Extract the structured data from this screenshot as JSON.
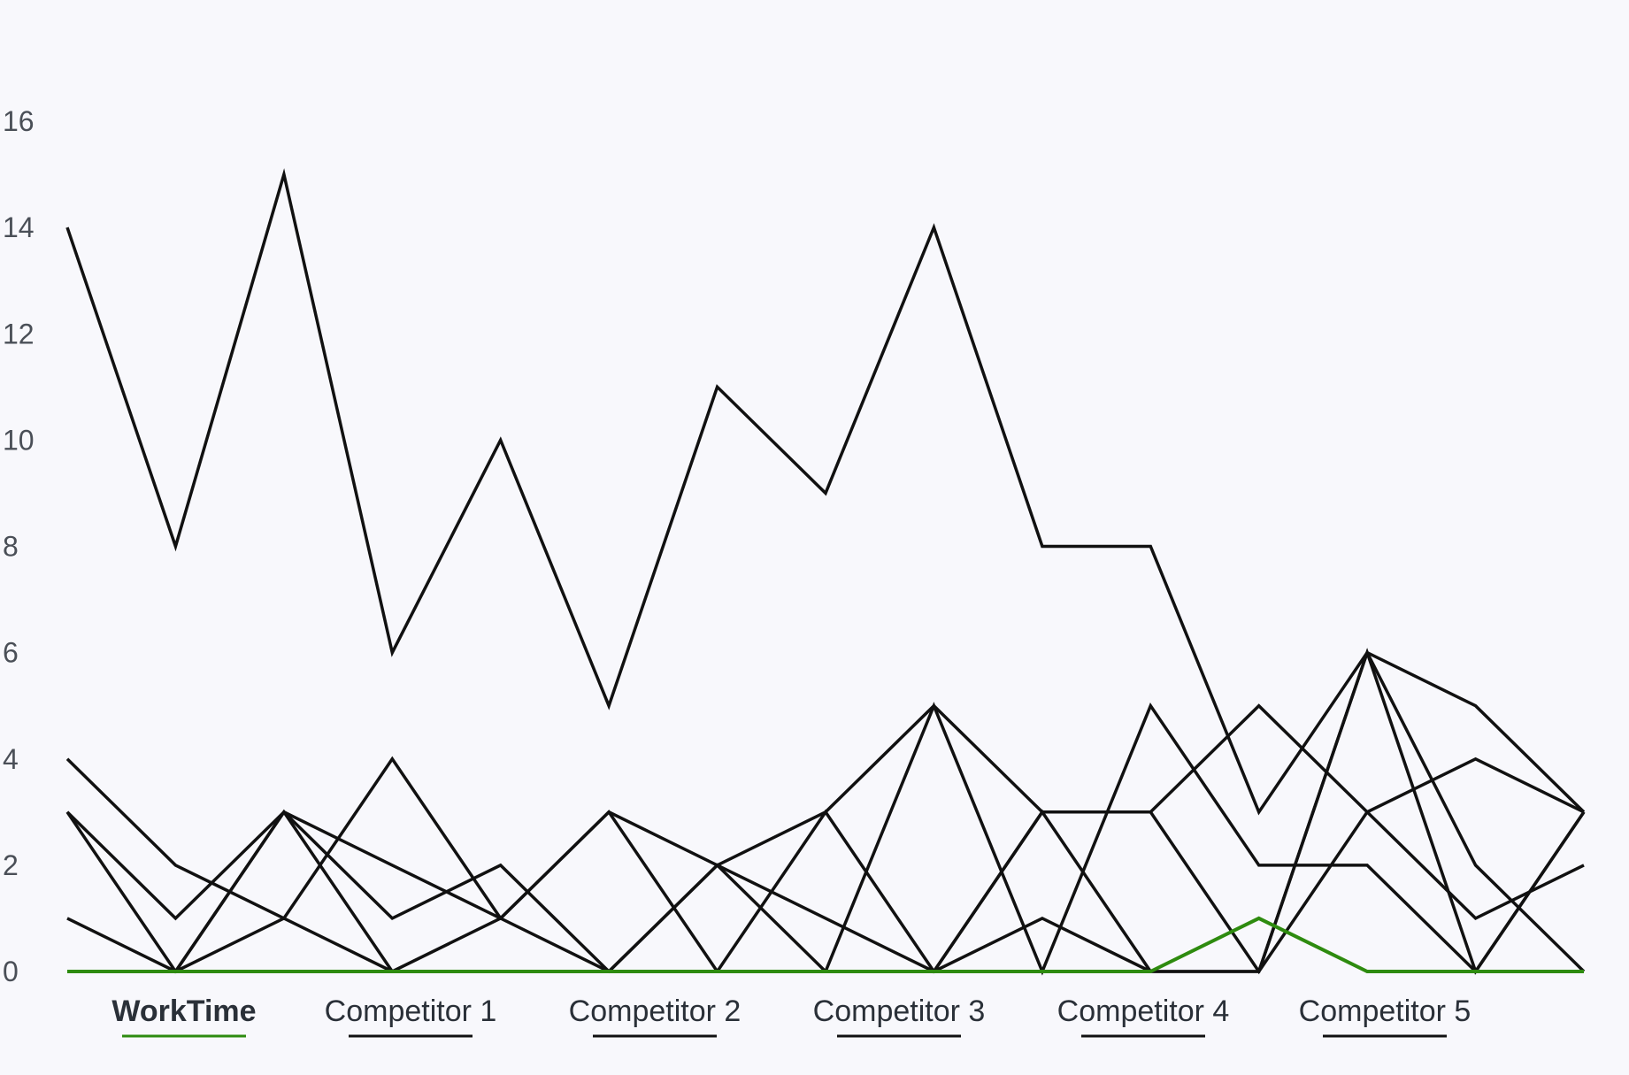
{
  "colors": {
    "background": "#f8f8fc",
    "series_default": "#111111",
    "series_highlight": "#2e8b0f",
    "axis_text": "#4a4f57",
    "legend_text": "#2a3038"
  },
  "chart_data": {
    "type": "line",
    "title": "",
    "xlabel": "",
    "ylabel": "",
    "x_count": 15,
    "x": [
      1,
      2,
      3,
      4,
      5,
      6,
      7,
      8,
      9,
      10,
      11,
      12,
      13,
      14,
      15
    ],
    "ylim": [
      0,
      16
    ],
    "yticks": [
      0,
      2,
      4,
      6,
      8,
      10,
      12,
      14,
      16
    ],
    "grid": false,
    "legend_position": "bottom",
    "series": [
      {
        "name": "WorkTime",
        "highlight": true,
        "values": [
          0,
          0,
          0,
          0,
          0,
          0,
          0,
          0,
          0,
          0,
          0,
          1,
          0,
          0,
          0
        ]
      },
      {
        "name": "Competitor 1",
        "values": [
          14,
          8,
          15,
          6,
          10,
          5,
          11,
          9,
          14,
          8,
          8,
          3,
          6,
          5,
          3
        ]
      },
      {
        "name": "Competitor 2",
        "values": [
          4,
          2,
          1,
          0,
          1,
          3,
          2,
          1,
          0,
          3,
          3,
          5,
          3,
          1,
          2
        ]
      },
      {
        "name": "Competitor 3",
        "values": [
          3,
          1,
          3,
          1,
          2,
          0,
          0,
          3,
          0,
          1,
          0,
          0,
          6,
          2,
          0
        ]
      },
      {
        "name": "Competitor 4",
        "values": [
          3,
          0,
          1,
          4,
          1,
          0,
          2,
          3,
          5,
          3,
          3,
          0,
          3,
          4,
          3
        ]
      },
      {
        "name": "Competitor 5",
        "values": [
          1,
          0,
          3,
          2,
          1,
          3,
          0,
          0,
          5,
          0,
          5,
          2,
          2,
          0,
          3
        ]
      }
    ],
    "extra_series": [
      {
        "values": [
          0,
          0,
          3,
          0,
          0,
          0,
          2,
          0,
          0,
          3,
          0,
          0,
          6,
          0,
          3
        ]
      }
    ]
  }
}
